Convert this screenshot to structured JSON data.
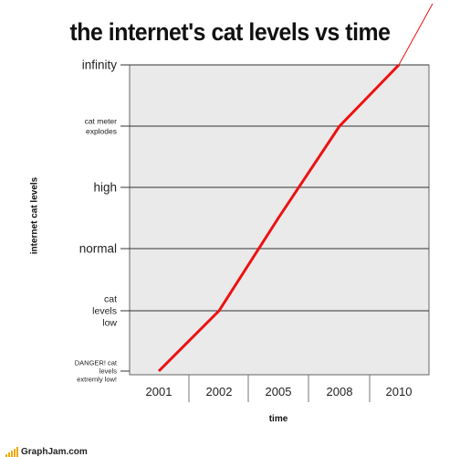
{
  "chart_data": {
    "type": "line",
    "title": "the internet's cat levels vs time",
    "xlabel": "time",
    "ylabel": "internet cat levels",
    "categories": [
      "2001",
      "2002",
      "2005",
      "2008",
      "2010"
    ],
    "y_ticks": [
      "DANGER! cat levels extremly low!",
      "cat levels low",
      "normal",
      "high",
      "cat meter explodes",
      "infinity"
    ],
    "ylim": [
      0,
      5
    ],
    "grid": true,
    "series": [
      {
        "color": "#ee1111",
        "points": [
          {
            "x": "2001",
            "y": 0
          },
          {
            "x": "2002",
            "y": 1
          },
          {
            "x": "2005",
            "y": 2.5
          },
          {
            "x": "2008",
            "y": 4
          },
          {
            "x": "2010",
            "y": 5
          },
          {
            "x": "beyond",
            "y": 6.05
          }
        ]
      }
    ]
  },
  "footer": {
    "brand": "GraphJam.com"
  }
}
